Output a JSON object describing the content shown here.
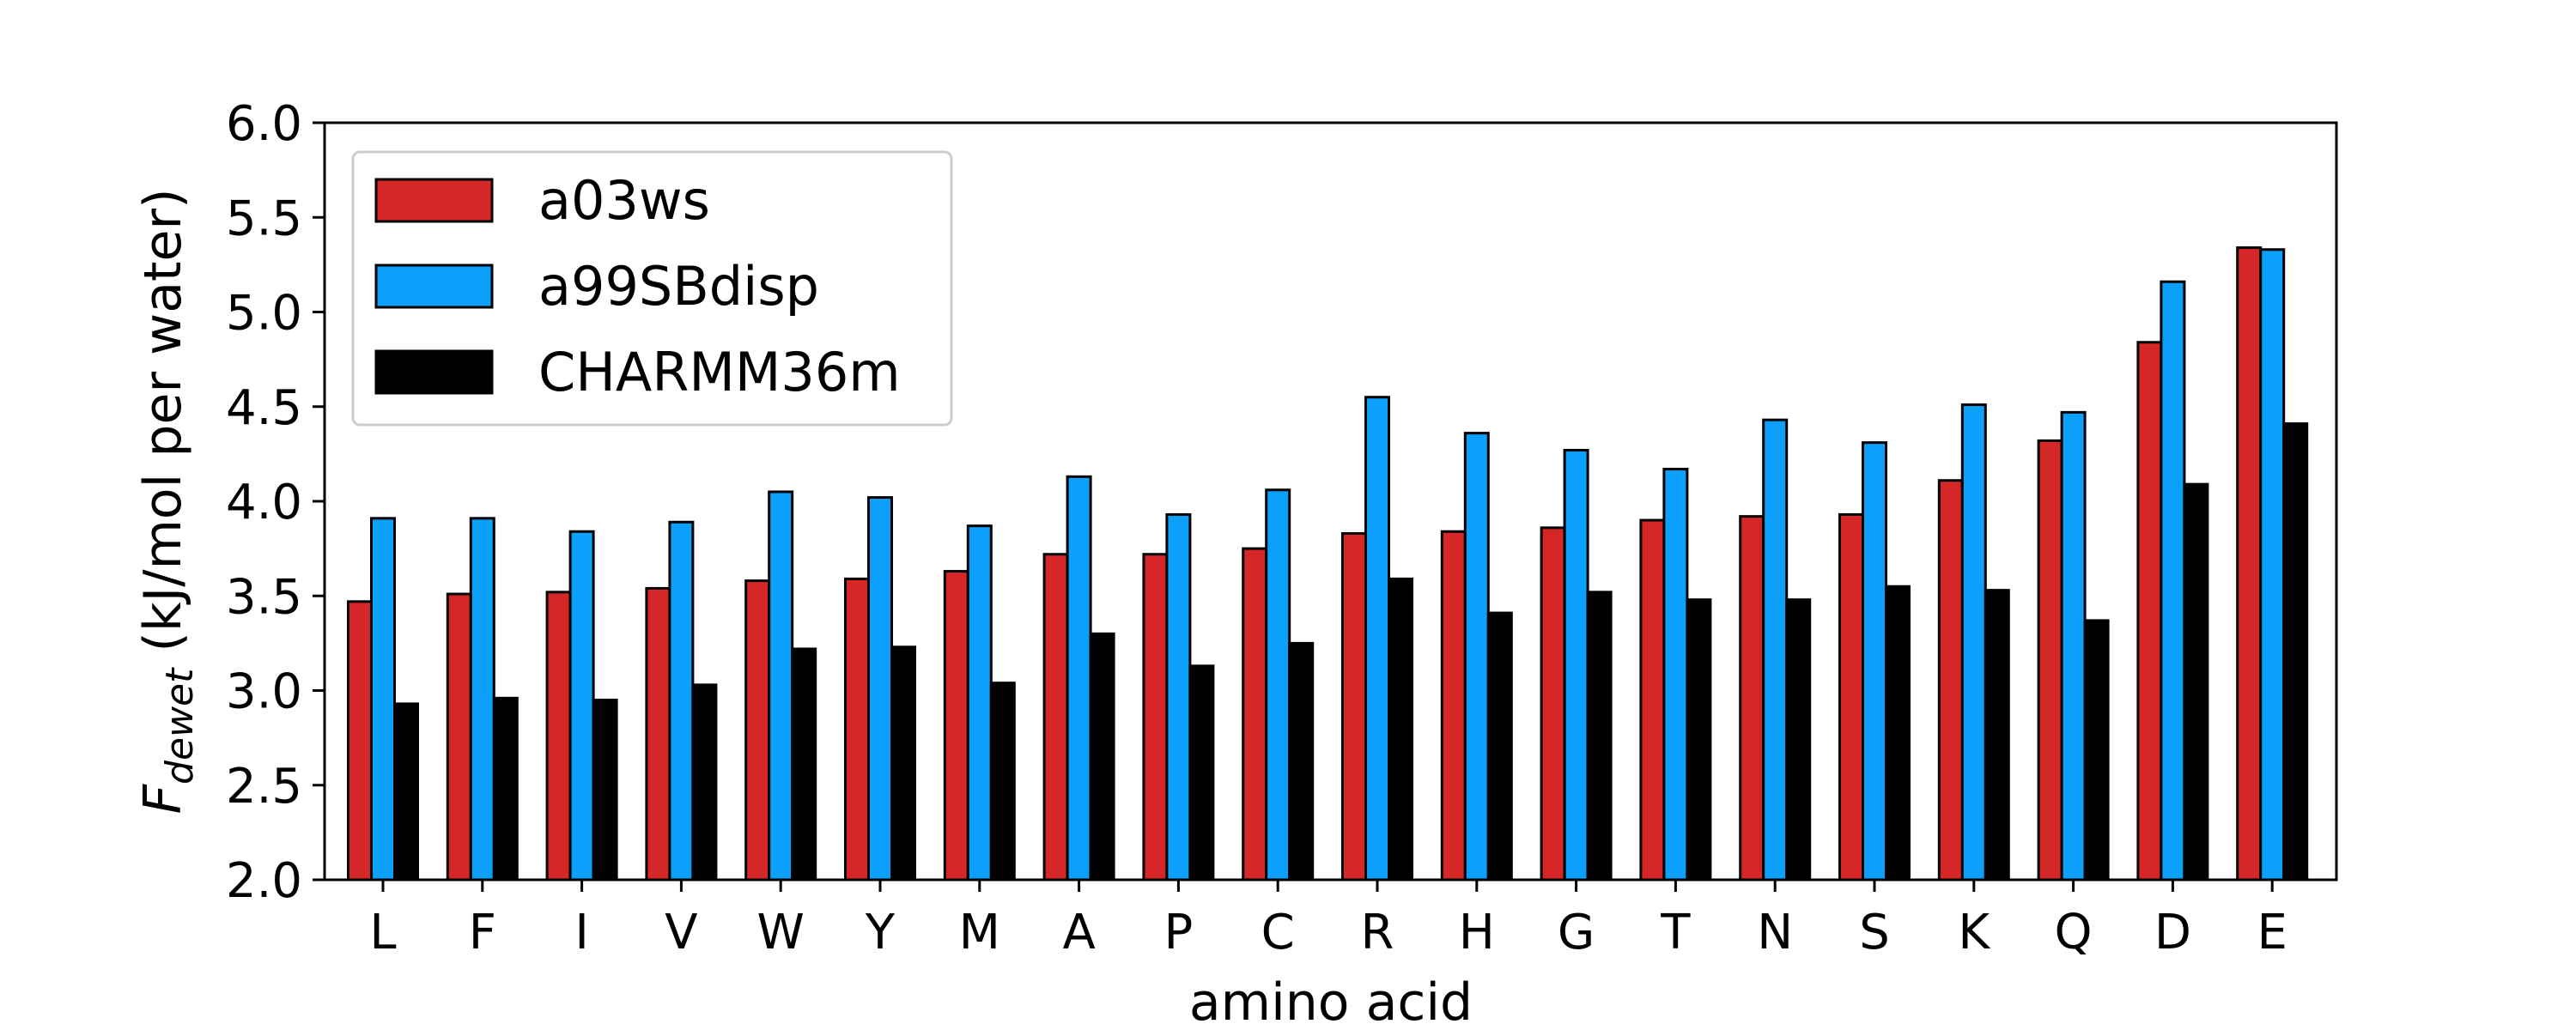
{
  "chart_data": {
    "type": "bar",
    "categories": [
      "L",
      "F",
      "I",
      "V",
      "W",
      "Y",
      "M",
      "A",
      "P",
      "C",
      "R",
      "H",
      "G",
      "T",
      "N",
      "S",
      "K",
      "Q",
      "D",
      "E"
    ],
    "series": [
      {
        "name": "a03ws",
        "color": "#d62728",
        "values": [
          3.47,
          3.51,
          3.52,
          3.54,
          3.58,
          3.59,
          3.63,
          3.72,
          3.72,
          3.75,
          3.83,
          3.84,
          3.86,
          3.9,
          3.92,
          3.93,
          4.11,
          4.32,
          4.84,
          5.34
        ]
      },
      {
        "name": "a99SBdisp",
        "color": "#0ca0fa",
        "values": [
          3.91,
          3.91,
          3.84,
          3.89,
          4.05,
          4.02,
          3.87,
          4.13,
          3.93,
          4.06,
          4.55,
          4.36,
          4.27,
          4.17,
          4.43,
          4.31,
          4.51,
          4.47,
          5.16,
          5.33
        ]
      },
      {
        "name": "CHARMM36m",
        "color": "#000000",
        "values": [
          2.93,
          2.96,
          2.95,
          3.03,
          3.22,
          3.23,
          3.04,
          3.3,
          3.13,
          3.25,
          3.59,
          3.41,
          3.52,
          3.48,
          3.48,
          3.55,
          3.53,
          3.37,
          4.09,
          4.41
        ]
      }
    ],
    "xlabel": "amino acid",
    "ylabel_main": "F",
    "ylabel_sub": "dewet",
    "ylabel_rest": " (kJ/mol per water)",
    "ylim": [
      2.0,
      6.0
    ],
    "yticks": [
      "2.0",
      "2.5",
      "3.0",
      "3.5",
      "4.0",
      "4.5",
      "5.0",
      "5.5",
      "6.0"
    ],
    "grid": false,
    "legend_position": "top-left"
  }
}
